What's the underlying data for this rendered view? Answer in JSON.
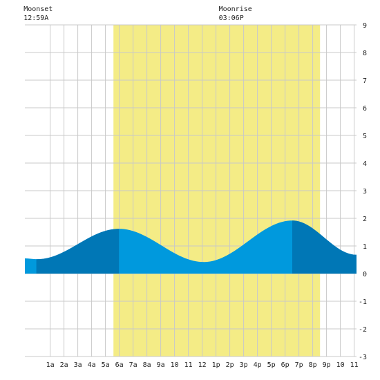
{
  "chart_data": {
    "type": "area",
    "title": "",
    "xlabel": "",
    "ylabel": "",
    "x_tick_labels": [
      "1a",
      "2a",
      "3a",
      "4a",
      "5a",
      "6a",
      "7a",
      "8a",
      "9a",
      "10",
      "11",
      "12",
      "1p",
      "2p",
      "3p",
      "4p",
      "5p",
      "6p",
      "7p",
      "8p",
      "9p",
      "10",
      "11"
    ],
    "x_tick_hours": [
      1,
      2,
      3,
      4,
      5,
      6,
      7,
      8,
      9,
      10,
      11,
      12,
      13,
      14,
      15,
      16,
      17,
      18,
      19,
      20,
      21,
      22,
      23
    ],
    "xlim": [
      -0.83,
      23.17
    ],
    "ylim": [
      -3,
      9
    ],
    "y_ticks": [
      -3,
      -2,
      -1,
      0,
      1,
      2,
      3,
      4,
      5,
      6,
      7,
      8,
      9
    ],
    "grid": true,
    "daylight": {
      "start_hour": 5.58,
      "end_hour": 20.53,
      "color": "#f4ec86"
    },
    "series": [
      {
        "points": [
          [
            -0.83,
            0.55
          ],
          [
            0.05,
            0.52
          ],
          [
            5.98,
            1.62
          ],
          [
            12.12,
            0.42
          ],
          [
            18.52,
            1.92
          ],
          [
            23.17,
            0.68
          ]
        ],
        "color": "#0099dd",
        "dark_color": "#0077b6",
        "dark_ranges": [
          [
            0.0,
            5.98
          ],
          [
            18.52,
            23.17
          ]
        ]
      }
    ],
    "annotations": [
      {
        "label": "Moonset",
        "time": "12:59A",
        "hour": 0.98
      },
      {
        "label": "Moonrise",
        "time": "03:06P",
        "hour": 15.1
      }
    ]
  }
}
